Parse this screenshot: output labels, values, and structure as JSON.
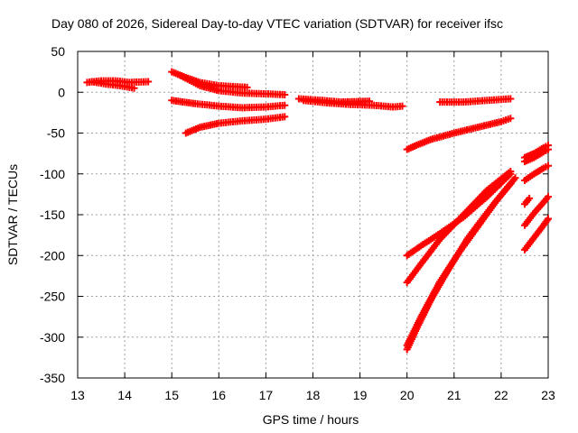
{
  "chart_data": {
    "type": "scatter",
    "title": "Day 080 of 2026, Sidereal Day-to-day VTEC variation (SDTVAR) for receiver ifsc",
    "xlabel": "GPS time / hours",
    "ylabel": "SDTVAR / TECUs",
    "xlim": [
      13,
      23
    ],
    "ylim": [
      -350,
      50
    ],
    "xticks": [
      13,
      14,
      15,
      16,
      17,
      18,
      19,
      20,
      21,
      22,
      23
    ],
    "yticks": [
      50,
      0,
      -50,
      -100,
      -150,
      -200,
      -250,
      -300,
      -350
    ],
    "grid": true,
    "legend": "none",
    "marker": "plus",
    "color": "#ff0000",
    "series": [
      {
        "points": [
          [
            13.2,
            12
          ],
          [
            13.5,
            14
          ],
          [
            13.8,
            14
          ],
          [
            14.1,
            12
          ],
          [
            14.5,
            13
          ]
        ]
      },
      {
        "points": [
          [
            13.3,
            13
          ],
          [
            13.6,
            10
          ],
          [
            13.9,
            8
          ],
          [
            14.2,
            5
          ]
        ]
      },
      {
        "points": [
          [
            15.0,
            25
          ],
          [
            15.3,
            18
          ],
          [
            15.6,
            12
          ],
          [
            16.0,
            8
          ],
          [
            16.3,
            7
          ],
          [
            16.6,
            6
          ]
        ]
      },
      {
        "points": [
          [
            15.2,
            20
          ],
          [
            15.6,
            8
          ],
          [
            16.0,
            2
          ],
          [
            16.5,
            -1
          ],
          [
            17.0,
            -2
          ],
          [
            17.4,
            -3
          ]
        ]
      },
      {
        "points": [
          [
            15.0,
            -10
          ],
          [
            15.5,
            -14
          ],
          [
            16.0,
            -17
          ],
          [
            16.5,
            -19
          ],
          [
            17.0,
            -18
          ],
          [
            17.4,
            -16
          ]
        ]
      },
      {
        "points": [
          [
            15.3,
            -50
          ],
          [
            15.6,
            -43
          ],
          [
            16.0,
            -38
          ],
          [
            16.5,
            -35
          ],
          [
            17.0,
            -33
          ],
          [
            17.4,
            -30
          ]
        ]
      },
      {
        "points": [
          [
            17.7,
            -8
          ],
          [
            18.2,
            -10
          ],
          [
            18.6,
            -12
          ],
          [
            19.2,
            -11
          ]
        ]
      },
      {
        "points": [
          [
            17.8,
            -10
          ],
          [
            18.3,
            -13
          ],
          [
            18.8,
            -15
          ],
          [
            19.3,
            -16
          ],
          [
            19.7,
            -18
          ],
          [
            19.9,
            -17
          ]
        ]
      },
      {
        "points": [
          [
            20.0,
            -70
          ],
          [
            20.2,
            -65
          ],
          [
            20.5,
            -58
          ],
          [
            21.0,
            -50
          ],
          [
            21.5,
            -43
          ],
          [
            22.0,
            -36
          ],
          [
            22.2,
            -32
          ]
        ]
      },
      {
        "points": [
          [
            20.7,
            -12
          ],
          [
            21.2,
            -12
          ],
          [
            21.7,
            -10
          ],
          [
            22.2,
            -8
          ]
        ]
      },
      {
        "points": [
          [
            20.0,
            -200
          ],
          [
            20.3,
            -188
          ],
          [
            20.7,
            -173
          ],
          [
            21.2,
            -153
          ],
          [
            21.7,
            -128
          ],
          [
            22.2,
            -100
          ]
        ]
      },
      {
        "points": [
          [
            20.0,
            -233
          ],
          [
            20.3,
            -210
          ],
          [
            20.7,
            -180
          ],
          [
            21.2,
            -150
          ],
          [
            21.7,
            -120
          ],
          [
            22.2,
            -97
          ]
        ]
      },
      {
        "points": [
          [
            20.0,
            -315
          ],
          [
            20.2,
            -290
          ],
          [
            20.5,
            -255
          ],
          [
            20.9,
            -215
          ],
          [
            21.3,
            -178
          ],
          [
            21.8,
            -140
          ],
          [
            22.2,
            -112
          ]
        ]
      },
      {
        "points": [
          [
            20.0,
            -310
          ],
          [
            20.3,
            -275
          ],
          [
            20.7,
            -232
          ],
          [
            21.1,
            -197
          ],
          [
            21.5,
            -165
          ],
          [
            21.9,
            -133
          ],
          [
            22.3,
            -105
          ]
        ]
      },
      {
        "points": [
          [
            22.5,
            -80
          ],
          [
            22.7,
            -75
          ],
          [
            22.9,
            -68
          ],
          [
            23.0,
            -65
          ]
        ]
      },
      {
        "points": [
          [
            22.5,
            -85
          ],
          [
            22.7,
            -80
          ],
          [
            22.9,
            -73
          ],
          [
            23.0,
            -70
          ]
        ]
      },
      {
        "points": [
          [
            22.5,
            -108
          ],
          [
            22.7,
            -100
          ],
          [
            22.9,
            -93
          ],
          [
            23.0,
            -90
          ]
        ]
      },
      {
        "points": [
          [
            22.5,
            -137
          ],
          [
            22.6,
            -130
          ]
        ]
      },
      {
        "points": [
          [
            22.5,
            -163
          ],
          [
            22.7,
            -148
          ],
          [
            22.9,
            -135
          ],
          [
            23.0,
            -128
          ]
        ]
      },
      {
        "points": [
          [
            22.5,
            -193
          ],
          [
            22.7,
            -178
          ],
          [
            22.9,
            -163
          ],
          [
            23.0,
            -155
          ]
        ]
      }
    ]
  }
}
